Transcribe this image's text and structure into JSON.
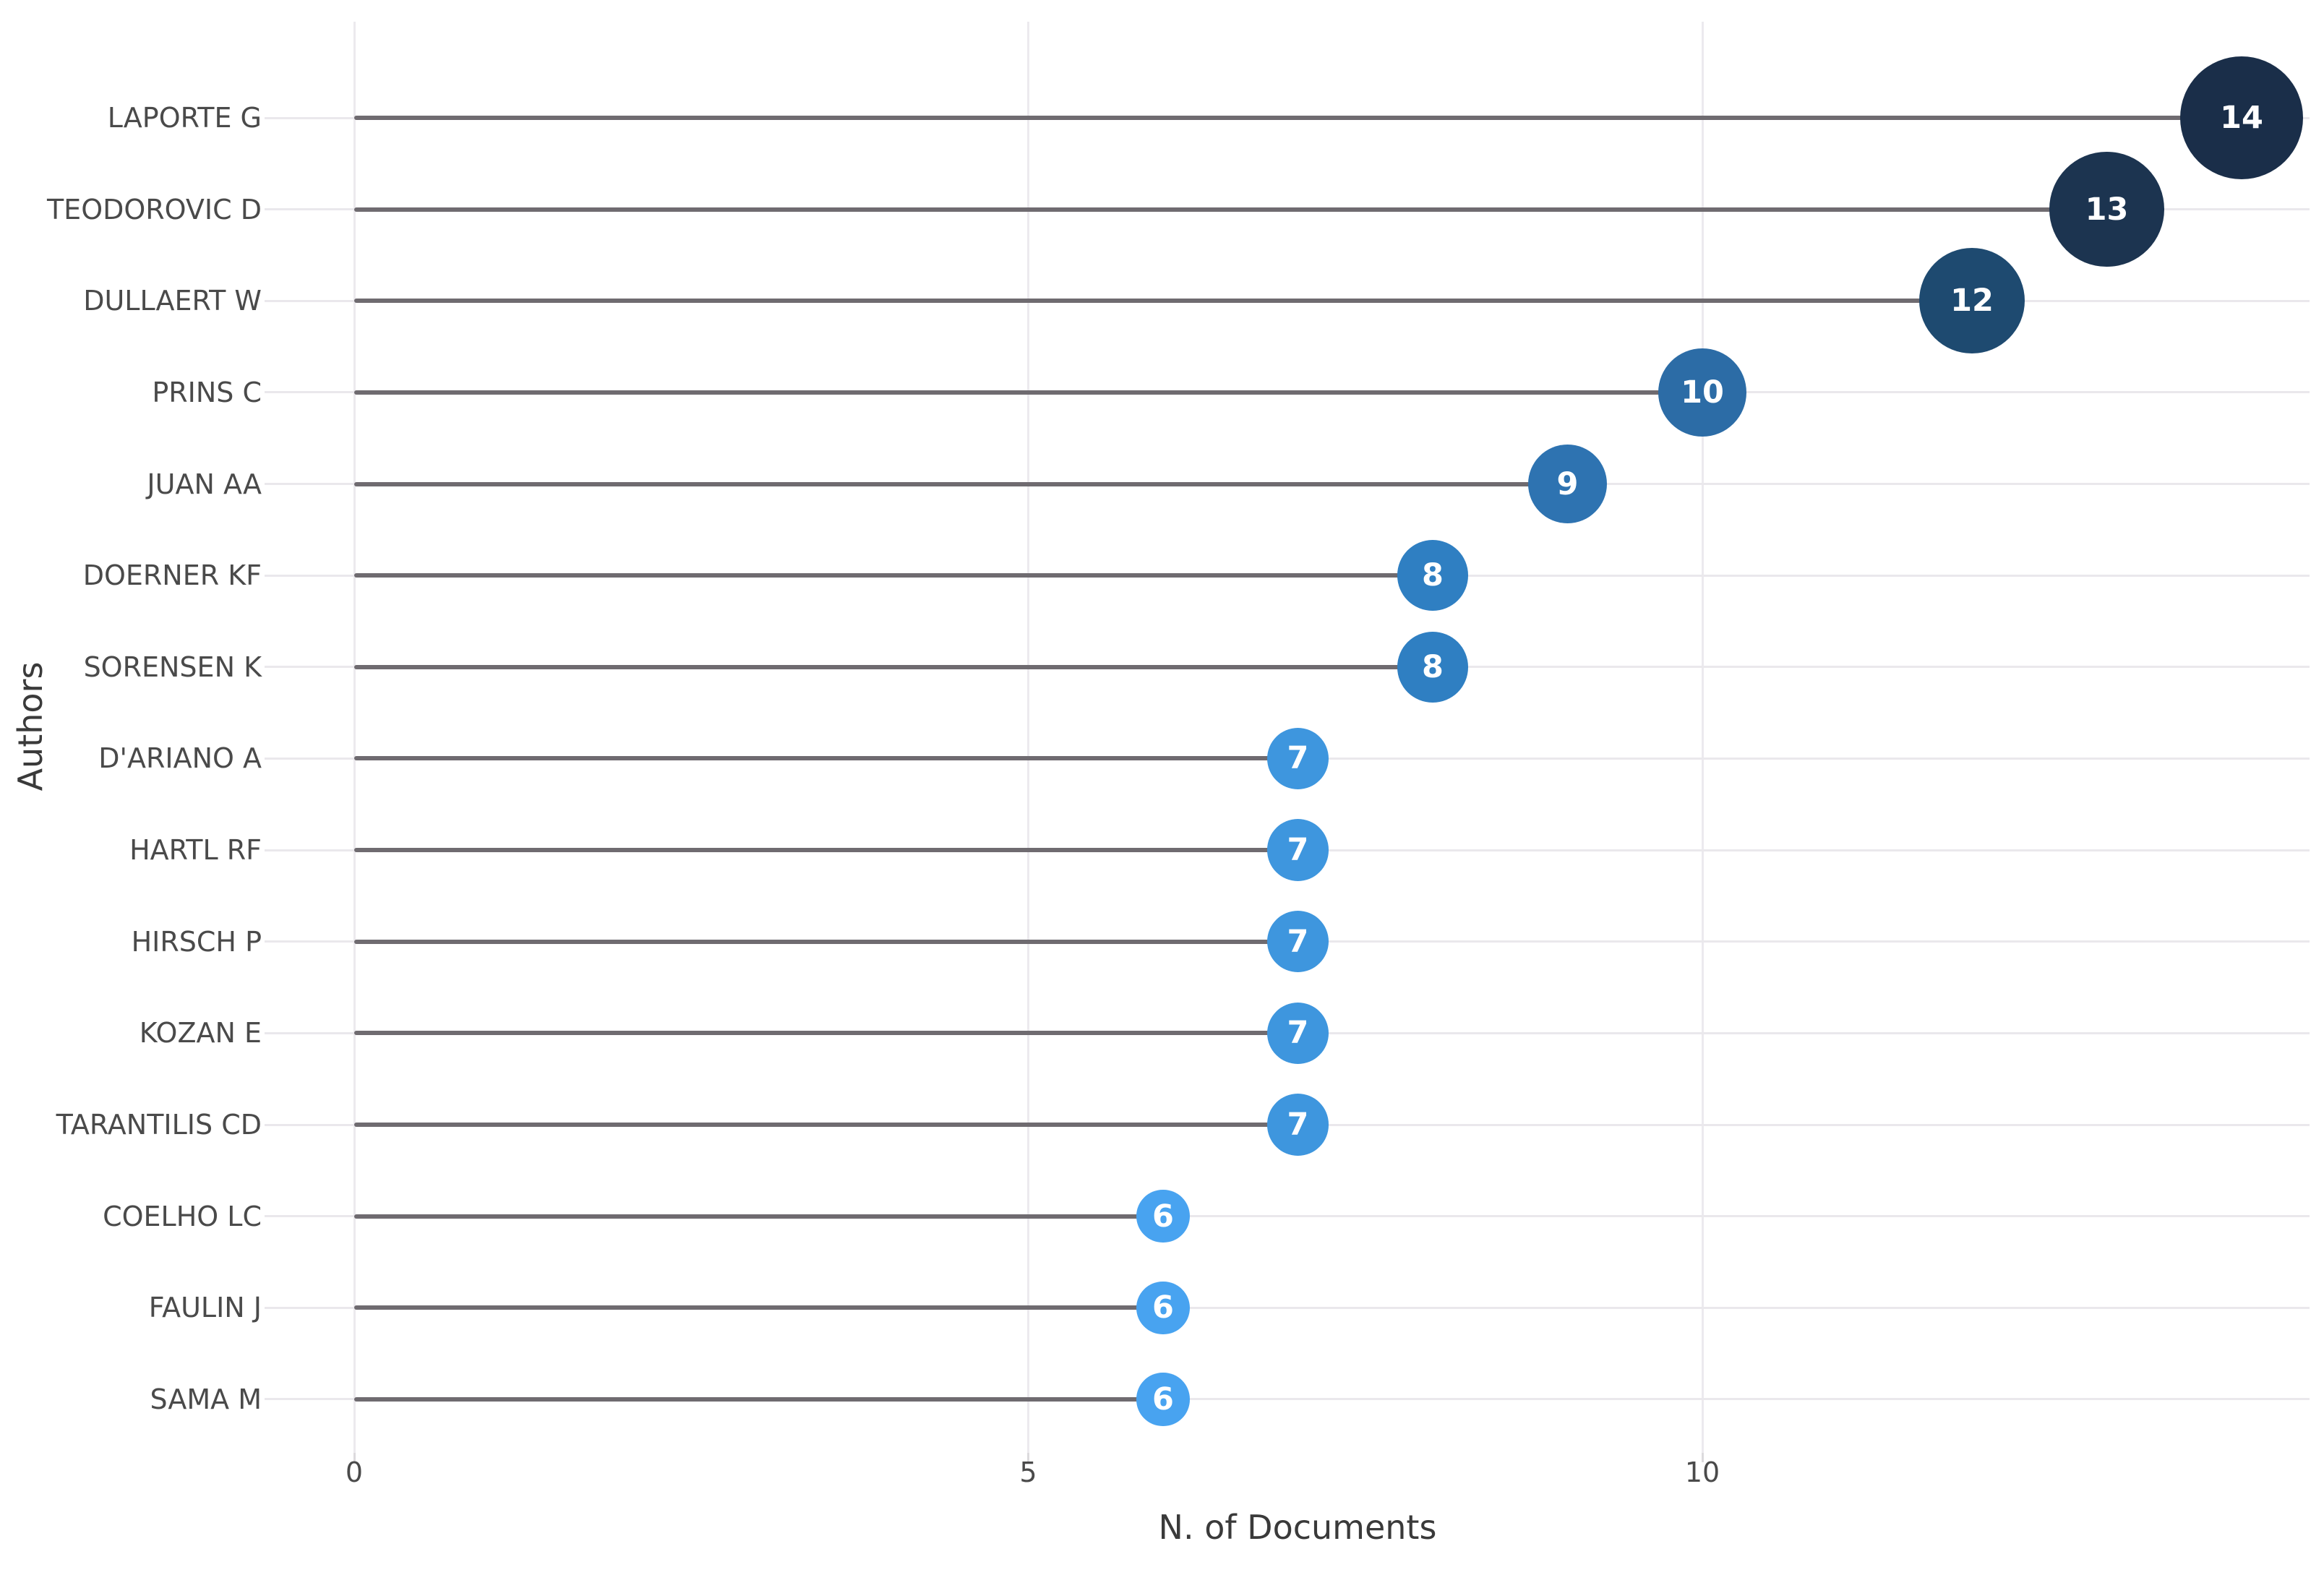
{
  "page": {
    "background": "#ffffff"
  },
  "chart_data": {
    "type": "lollipop",
    "title": "",
    "xlabel": "N. of Documents",
    "ylabel": "Authors",
    "x_axis": {
      "ticks": [
        "0",
        "5",
        "10"
      ],
      "tick_values": [
        0,
        5,
        10
      ],
      "range": [
        0,
        14.6
      ],
      "grid": true
    },
    "y_axis": {
      "grid": true
    },
    "legend": "none",
    "points": [
      {
        "author": "LAPORTE G",
        "value": 14,
        "color": "#1a2e49"
      },
      {
        "author": "TEODOROVIC D",
        "value": 13,
        "color": "#1c3450"
      },
      {
        "author": "DULLAERT W",
        "value": 12,
        "color": "#1e4a70"
      },
      {
        "author": "PRINS C",
        "value": 10,
        "color": "#2c6ca6"
      },
      {
        "author": "JUAN AA",
        "value": 9,
        "color": "#2e73b1"
      },
      {
        "author": "DOERNER KF",
        "value": 8,
        "color": "#2f7fc2"
      },
      {
        "author": "SORENSEN K",
        "value": 8,
        "color": "#2f7fc2"
      },
      {
        "author": "D'ARIANO A",
        "value": 7,
        "color": "#3e96de"
      },
      {
        "author": "HARTL RF",
        "value": 7,
        "color": "#3e96de"
      },
      {
        "author": "HIRSCH P",
        "value": 7,
        "color": "#3e96de"
      },
      {
        "author": "KOZAN E",
        "value": 7,
        "color": "#3e96de"
      },
      {
        "author": "TARANTILIS CD",
        "value": 7,
        "color": "#3e96de"
      },
      {
        "author": "COELHO LC",
        "value": 6,
        "color": "#48a3f0"
      },
      {
        "author": "FAULIN J",
        "value": 6,
        "color": "#48a3f0"
      },
      {
        "author": "SAMA M",
        "value": 6,
        "color": "#48a3f0"
      }
    ],
    "colors": {
      "stem": "#6f6b70",
      "gridline": "#eae8ec",
      "axis_label": "#4a4a4a",
      "bubble_text": "#ffffff"
    }
  }
}
